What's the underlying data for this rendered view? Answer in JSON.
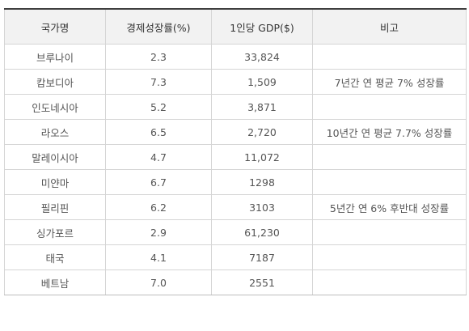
{
  "table": {
    "headers": [
      "국가명",
      "경제성장률(%)",
      "1인당 GDP($)",
      "비고"
    ],
    "rows": [
      [
        "브루나이",
        "2.3",
        "33,824",
        ""
      ],
      [
        "캄보디아",
        "7.3",
        "1,509",
        "7년간 연 평균 7% 성장률"
      ],
      [
        "인도네시아",
        "5.2",
        "3,871",
        ""
      ],
      [
        "라오스",
        "6.5",
        "2,720",
        "10년간 연 평균 7.7% 성장률"
      ],
      [
        "말레이시아",
        "4.7",
        "11,072",
        ""
      ],
      [
        "미얀마",
        "6.7",
        "1298",
        ""
      ],
      [
        "필리핀",
        "6.2",
        "3103",
        "5년간 연 6% 후반대 성장률"
      ],
      [
        "싱가포르",
        "2.9",
        "61,230",
        ""
      ],
      [
        "태국",
        "4.1",
        "7187",
        ""
      ],
      [
        "베트남",
        "7.0",
        "2551",
        ""
      ]
    ]
  }
}
